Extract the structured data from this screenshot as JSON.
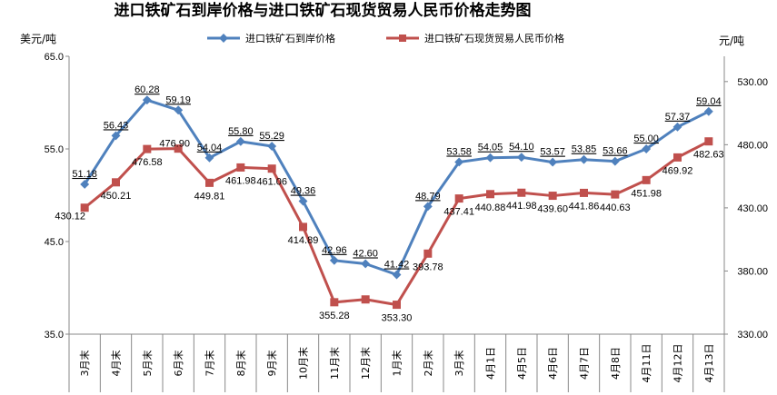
{
  "chart_data": {
    "type": "line",
    "title": "进口铁矿石到岸价格与进口铁矿石现货贸易人民币价格走势图",
    "left_unit": "美元/吨",
    "right_unit": "元/吨",
    "categories": [
      "3月末",
      "4月末",
      "5月末",
      "6月末",
      "7月末",
      "8月末",
      "9月末",
      "10月末",
      "11月末",
      "12月末",
      "1月末",
      "2月末",
      "3月末",
      "4月1日",
      "4月5日",
      "4月6日",
      "4月7日",
      "4月8日",
      "4月11日",
      "4月12日",
      "4月13日"
    ],
    "left_axis": {
      "min": 35,
      "max": 65,
      "ticks": [
        "35.0",
        "45.0",
        "55.0",
        "65.0"
      ]
    },
    "right_axis": {
      "min": 330,
      "max": 550,
      "ticks": [
        "330.00",
        "380.00",
        "430.00",
        "480.00",
        "530.00"
      ]
    },
    "grid": false,
    "legend_position": "top",
    "series": [
      {
        "name": "进口铁矿石到岸价格",
        "axis": "left",
        "color": "#4F81BD",
        "marker": "diamond",
        "values": [
          51.18,
          56.43,
          60.28,
          59.19,
          54.04,
          55.8,
          55.29,
          49.36,
          42.96,
          42.6,
          41.42,
          48.79,
          53.58,
          54.05,
          54.1,
          53.57,
          53.85,
          53.66,
          55.0,
          57.37,
          59.04
        ],
        "labels": [
          "51.18",
          "56.43",
          "60.28",
          "59.19",
          "54.04",
          "55.80",
          "55.29",
          "49.36",
          "42.96",
          "42.60",
          "41.42",
          "48.79",
          "53.58",
          "54.05",
          "54.10",
          "53.57",
          "53.85",
          "53.66",
          "55.00",
          "57.37",
          "59.04"
        ]
      },
      {
        "name": "进口铁矿石现货贸易人民币价格",
        "axis": "right",
        "color": "#C0504D",
        "marker": "square",
        "values": [
          430.12,
          450.21,
          476.58,
          476.9,
          449.81,
          461.98,
          461.06,
          414.89,
          355.28,
          357.5,
          353.3,
          393.78,
          437.41,
          440.88,
          441.98,
          439.6,
          441.86,
          440.63,
          451.98,
          469.92,
          482.63
        ],
        "labels": [
          "430.12",
          "450.21",
          "476.58",
          "476.90",
          "449.81",
          "461.98",
          "461.06",
          "414.89",
          "355.28",
          "",
          "353.30",
          "393.78",
          "437.41",
          "440.88",
          "441.98",
          "439.60",
          "441.86",
          "440.63",
          "451.98",
          "469.92",
          "482.63"
        ]
      }
    ]
  }
}
